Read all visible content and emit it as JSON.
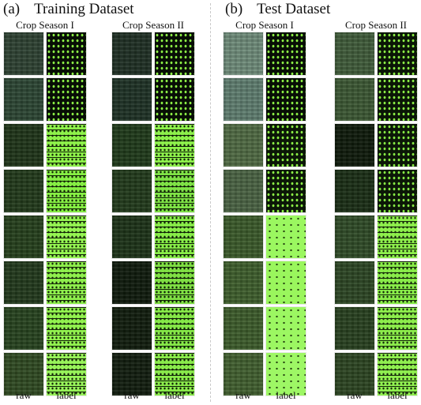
{
  "panels": [
    {
      "letter": "(a)",
      "title": "Training Dataset",
      "seasons": [
        {
          "title": "Crop Season I",
          "col_labels": [
            "raw",
            "label"
          ],
          "tiles": [
            {
              "raw_color": "#2e4233",
              "label_color": "#070d05",
              "label_dot": "#8cf046",
              "label_type": "dots"
            },
            {
              "raw_color": "#2c4634",
              "label_color": "#070d05",
              "label_dot": "#8cf046",
              "label_type": "dots"
            },
            {
              "raw_color": "#1f3519",
              "label_color": "#8ef24a",
              "label_dot": "#122207",
              "label_type": "streaks"
            },
            {
              "raw_color": "#223a1b",
              "label_color": "#86ee44",
              "label_dot": "#122207",
              "label_type": "streaks"
            },
            {
              "raw_color": "#25401c",
              "label_color": "#95f552",
              "label_dot": "#122207",
              "label_type": "streaks"
            },
            {
              "raw_color": "#22391c",
              "label_color": "#8ff04d",
              "label_dot": "#122207",
              "label_type": "streaks"
            },
            {
              "raw_color": "#27431f",
              "label_color": "#92f24f",
              "label_dot": "#122207",
              "label_type": "streaks"
            },
            {
              "raw_color": "#304a22",
              "label_color": "#98f35a",
              "label_dot": "#122207",
              "label_type": "streaks"
            }
          ]
        },
        {
          "title": "Crop Season II",
          "col_labels": [
            "raw",
            "label"
          ],
          "tiles": [
            {
              "raw_color": "#1f3024",
              "label_color": "#070d05",
              "label_dot": "#8cf046",
              "label_type": "dots"
            },
            {
              "raw_color": "#1e3225",
              "label_color": "#070d05",
              "label_dot": "#8cf046",
              "label_type": "dots"
            },
            {
              "raw_color": "#1f3a1a",
              "label_color": "#8df04b",
              "label_dot": "#0d1c06",
              "label_type": "streaks"
            },
            {
              "raw_color": "#213a1b",
              "label_color": "#7fe246",
              "label_dot": "#0d1c06",
              "label_type": "streaks"
            },
            {
              "raw_color": "#1c3318",
              "label_color": "#88ec48",
              "label_dot": "#0d1c06",
              "label_type": "streaks"
            },
            {
              "raw_color": "#0e1a0c",
              "label_color": "#80e044",
              "label_dot": "#0d1c06",
              "label_type": "streaks"
            },
            {
              "raw_color": "#101c0d",
              "label_color": "#86e848",
              "label_dot": "#0d1c06",
              "label_type": "streaks"
            },
            {
              "raw_color": "#111d0e",
              "label_color": "#8aea4b",
              "label_dot": "#0d1c06",
              "label_type": "streaks"
            }
          ]
        }
      ]
    },
    {
      "letter": "(b)",
      "title": "Test Dataset",
      "seasons": [
        {
          "title": "Crop Season I",
          "col_labels": [
            "raw",
            "label"
          ],
          "tiles": [
            {
              "raw_color": "#6f8c7a",
              "label_color": "#070d05",
              "label_dot": "#8cf046",
              "label_type": "dots"
            },
            {
              "raw_color": "#5f7e70",
              "label_color": "#070d05",
              "label_dot": "#8cf046",
              "label_type": "dots"
            },
            {
              "raw_color": "#506a43",
              "label_color": "#0b1607",
              "label_dot": "#8cf046",
              "label_type": "dots"
            },
            {
              "raw_color": "#4a6343",
              "label_color": "#0b1607",
              "label_dot": "#8cf046",
              "label_type": "dots"
            },
            {
              "raw_color": "#3b5a2a",
              "label_color": "#9bf760",
              "label_dot": "#24420f",
              "label_type": "sparse"
            },
            {
              "raw_color": "#3e5e2c",
              "label_color": "#9af65d",
              "label_dot": "#24420f",
              "label_type": "sparse"
            },
            {
              "raw_color": "#3d5c2b",
              "label_color": "#9cf762",
              "label_dot": "#24420f",
              "label_type": "sparse"
            },
            {
              "raw_color": "#415f2f",
              "label_color": "#9ef765",
              "label_dot": "#24420f",
              "label_type": "sparse"
            }
          ]
        },
        {
          "title": "Crop Season II",
          "col_labels": [
            "raw",
            "label"
          ],
          "tiles": [
            {
              "raw_color": "#405c3a",
              "label_color": "#0a1506",
              "label_dot": "#8cf046",
              "label_type": "dots"
            },
            {
              "raw_color": "#3c5834",
              "label_color": "#0a1506",
              "label_dot": "#8cf046",
              "label_type": "dots"
            },
            {
              "raw_color": "#0e1a0b",
              "label_color": "#0b1607",
              "label_dot": "#86ea44",
              "label_type": "dots"
            },
            {
              "raw_color": "#1a2e16",
              "label_color": "#0b1607",
              "label_dot": "#86ea44",
              "label_type": "dots"
            },
            {
              "raw_color": "#2f4b27",
              "label_color": "#8eef4c",
              "label_dot": "#14260a",
              "label_type": "streaks"
            },
            {
              "raw_color": "#2c4624",
              "label_color": "#8aed4a",
              "label_dot": "#14260a",
              "label_type": "streaks"
            },
            {
              "raw_color": "#284120",
              "label_color": "#8ded4c",
              "label_dot": "#14260a",
              "label_type": "streaks"
            },
            {
              "raw_color": "#2c4522",
              "label_color": "#90ef50",
              "label_dot": "#14260a",
              "label_type": "streaks"
            }
          ]
        }
      ]
    }
  ]
}
